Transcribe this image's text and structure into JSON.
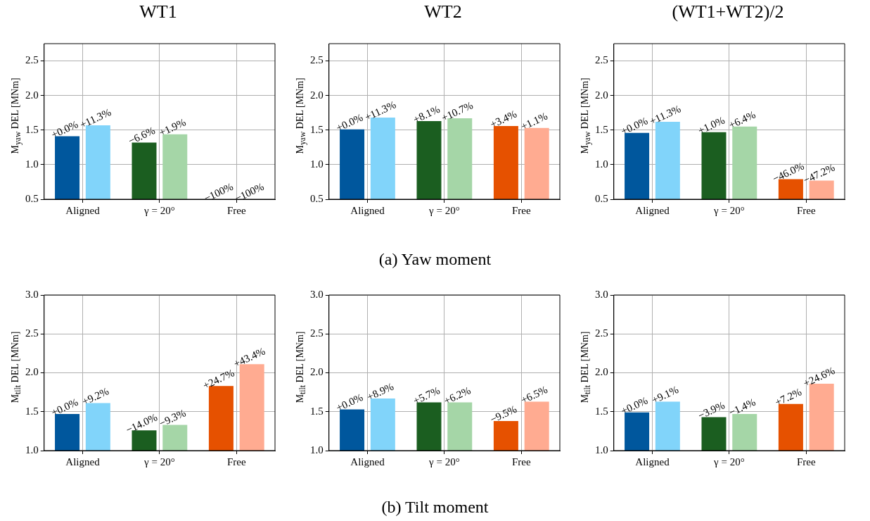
{
  "chart_data": [
    {
      "type": "bar",
      "title": "WT1",
      "ylabel": "M$_{yaw}$ DEL [MNm]",
      "categories": [
        "Aligned",
        "γ = 20°",
        "Free"
      ],
      "ylim": [
        0.5,
        2.75
      ],
      "yticks": [
        {
          "value": 0.5,
          "label": "0.5"
        },
        {
          "value": 1,
          "label": "1.0"
        },
        {
          "value": 1.5,
          "label": "1.5"
        },
        {
          "value": 2,
          "label": "2.0"
        },
        {
          "value": 2.5,
          "label": "2.5"
        }
      ],
      "grid": true,
      "series": [
        {
          "colors": [
            "#00579d",
            "#1b5e20",
            "#e65100"
          ],
          "values": [
            1.41,
            1.32,
            null
          ]
        },
        {
          "colors": [
            "#81d4fa",
            "#a5d6a7",
            "#ffab91"
          ],
          "values": [
            1.57,
            1.44,
            null
          ]
        }
      ],
      "annotations": [
        {
          "text": "+0.0%",
          "x": "Aligned",
          "y": 1.41
        },
        {
          "text": "+11.3%",
          "x": "Aligned",
          "y": 1.57
        },
        {
          "text": "−6.6%",
          "x": "γ = 20°",
          "y": 1.32
        },
        {
          "text": "+1.9%",
          "x": "γ = 20°",
          "y": 1.44
        },
        "−100%",
        "−100%"
      ]
    },
    {
      "type": "bar",
      "title": "WT2",
      "ylabel": "M$_{yaw}$ DEL [MNm]",
      "categories": [
        "Aligned",
        "γ = 20°",
        "Free"
      ],
      "ylim": [
        0.5,
        2.75
      ],
      "yticks": [
        {
          "value": 0.5,
          "label": "0.5"
        },
        {
          "value": 1,
          "label": "1.0"
        },
        {
          "value": 1.5,
          "label": "1.5"
        },
        {
          "value": 2,
          "label": "2.0"
        },
        {
          "value": 2.5,
          "label": "2.5"
        }
      ],
      "grid": true,
      "series": [
        {
          "colors": [
            "#00579d",
            "#1b5e20",
            "#e65100"
          ],
          "values": [
            1.51,
            1.63,
            1.56
          ]
        },
        {
          "colors": [
            "#81d4fa",
            "#a5d6a7",
            "#ffab91"
          ],
          "values": [
            1.68,
            1.67,
            1.53
          ]
        }
      ],
      "annotations": [
        "(a) Yaw moment",
        {
          "text": "+0.0%",
          "x": "Aligned",
          "y": 1.51
        },
        {
          "text": "+11.3%",
          "x": "Aligned",
          "y": 1.68
        },
        {
          "text": "+8.1%",
          "x": "γ = 20°",
          "y": 1.63
        },
        {
          "text": "+10.7%",
          "x": "γ = 20°",
          "y": 1.67
        },
        {
          "text": "+3.4%",
          "x": "Free",
          "y": 1.56
        },
        {
          "text": "+1.1%",
          "x": "Free",
          "y": 1.53
        }
      ]
    },
    {
      "type": "bar",
      "title": "(WT1+WT2)/2",
      "ylabel": "M$_{yaw}$ DEL [MNm]",
      "categories": [
        "Aligned",
        "γ = 20°",
        "Free"
      ],
      "ylim": [
        0.5,
        2.75
      ],
      "yticks": [
        {
          "value": 0.5,
          "label": "0.5"
        },
        {
          "value": 1,
          "label": "1.0"
        },
        {
          "value": 1.5,
          "label": "1.5"
        },
        {
          "value": 2,
          "label": "2.0"
        },
        {
          "value": 2.5,
          "label": "2.5"
        }
      ],
      "grid": true,
      "series": [
        {
          "colors": [
            "#00579d",
            "#1b5e20",
            "#e65100"
          ],
          "values": [
            1.46,
            1.47,
            0.79
          ]
        },
        {
          "colors": [
            "#81d4fa",
            "#a5d6a7",
            "#ffab91"
          ],
          "values": [
            1.62,
            1.55,
            0.77
          ]
        }
      ],
      "annotations": [
        {
          "text": "+0.0%",
          "x": "Aligned",
          "y": 1.46
        },
        {
          "text": "+11.3%",
          "x": "Aligned",
          "y": 1.62
        },
        {
          "text": "+1.0%",
          "x": "γ = 20°",
          "y": 1.47
        },
        {
          "text": "+6.4%",
          "x": "γ = 20°",
          "y": 1.55
        },
        {
          "text": "−46.0%",
          "x": "Free",
          "y": 0.79
        },
        {
          "text": "−47.2%",
          "x": "Free",
          "y": 0.77
        }
      ]
    },
    {
      "type": "bar",
      "ylabel": "M$_{tilt}$ DEL [MNm]",
      "categories": [
        "Aligned",
        "γ = 20°",
        "Free"
      ],
      "ylim": [
        1,
        3
      ],
      "yticks": [
        {
          "value": 1,
          "label": "1.0"
        },
        {
          "value": 1.5,
          "label": "1.5"
        },
        {
          "value": 2,
          "label": "2.0"
        },
        {
          "value": 2.5,
          "label": "2.5"
        },
        {
          "value": 3,
          "label": "3.0"
        }
      ],
      "grid": true,
      "series": [
        {
          "colors": [
            "#00579d",
            "#1b5e20",
            "#e65100"
          ],
          "values": [
            1.47,
            1.26,
            1.83
          ]
        },
        {
          "colors": [
            "#81d4fa",
            "#a5d6a7",
            "#ffab91"
          ],
          "values": [
            1.61,
            1.33,
            2.11
          ]
        }
      ],
      "annotations": [
        {
          "text": "+0.0%",
          "x": "Aligned",
          "y": 1.47
        },
        {
          "text": "+9.2%",
          "x": "Aligned",
          "y": 1.61
        },
        {
          "text": "−14.0%",
          "x": "γ = 20°",
          "y": 1.26
        },
        {
          "text": "−9.3%",
          "x": "γ = 20°",
          "y": 1.33
        },
        {
          "text": "+24.7%",
          "x": "Free",
          "y": 1.83
        },
        {
          "text": "+43.4%",
          "x": "Free",
          "y": 2.11
        }
      ]
    },
    {
      "type": "bar",
      "ylabel": "M$_{tilt}$ DEL [MNm]",
      "categories": [
        "Aligned",
        "γ = 20°",
        "Free"
      ],
      "ylim": [
        1,
        3
      ],
      "yticks": [
        {
          "value": 1,
          "label": "1.0"
        },
        {
          "value": 1.5,
          "label": "1.5"
        },
        {
          "value": 2,
          "label": "2.0"
        },
        {
          "value": 2.5,
          "label": "2.5"
        },
        {
          "value": 3,
          "label": "3.0"
        }
      ],
      "grid": true,
      "series": [
        {
          "colors": [
            "#00579d",
            "#1b5e20",
            "#e65100"
          ],
          "values": [
            1.53,
            1.62,
            1.38
          ]
        },
        {
          "colors": [
            "#81d4fa",
            "#a5d6a7",
            "#ffab91"
          ],
          "values": [
            1.67,
            1.62,
            1.63
          ]
        }
      ],
      "annotations": [
        "(b) Tilt moment",
        {
          "text": "+0.0%",
          "x": "Aligned",
          "y": 1.53
        },
        {
          "text": "+8.9%",
          "x": "Aligned",
          "y": 1.67
        },
        {
          "text": "+5.7%",
          "x": "γ = 20°",
          "y": 1.62
        },
        {
          "text": "+6.2%",
          "x": "γ = 20°",
          "y": 1.62
        },
        {
          "text": "−9.5%",
          "x": "Free",
          "y": 1.38
        },
        {
          "text": "+6.5%",
          "x": "Free",
          "y": 1.63
        }
      ]
    },
    {
      "type": "bar",
      "ylabel": "M$_{tilt}$ DEL [MNm]",
      "categories": [
        "Aligned",
        "γ = 20°",
        "Free"
      ],
      "ylim": [
        1,
        3
      ],
      "yticks": [
        {
          "value": 1,
          "label": "1.0"
        },
        {
          "value": 1.5,
          "label": "1.5"
        },
        {
          "value": 2,
          "label": "2.0"
        },
        {
          "value": 2.5,
          "label": "2.5"
        },
        {
          "value": 3,
          "label": "3.0"
        }
      ],
      "grid": true,
      "series": [
        {
          "colors": [
            "#00579d",
            "#1b5e20",
            "#e65100"
          ],
          "values": [
            1.49,
            1.43,
            1.6
          ]
        },
        {
          "colors": [
            "#81d4fa",
            "#a5d6a7",
            "#ffab91"
          ],
          "values": [
            1.63,
            1.47,
            1.86
          ]
        }
      ],
      "annotations": [
        {
          "text": "+0.0%",
          "x": "Aligned",
          "y": 1.49
        },
        {
          "text": "+9.1%",
          "x": "Aligned",
          "y": 1.63
        },
        {
          "text": "−3.9%",
          "x": "γ = 20°",
          "y": 1.43
        },
        {
          "text": "−1.4%",
          "x": "γ = 20°",
          "y": 1.47
        },
        {
          "text": "+7.2%",
          "x": "Free",
          "y": 1.6
        },
        {
          "text": "+24.6%",
          "x": "Free",
          "y": 1.86
        }
      ]
    }
  ]
}
